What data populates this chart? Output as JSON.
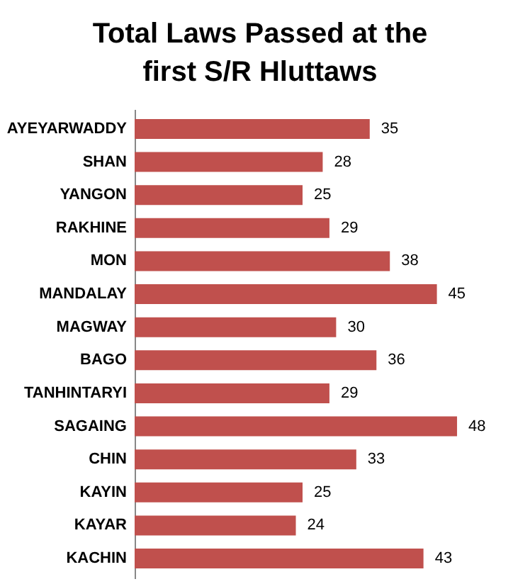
{
  "chart_data": {
    "type": "bar",
    "title": "Total Laws Passed at the first S/R Hluttaws",
    "orientation": "horizontal",
    "categories": [
      "AYEYARWADDY",
      "SHAN",
      "YANGON",
      "RAKHINE",
      "MON",
      "MANDALAY",
      "MAGWAY",
      "BAGO",
      "TANHINTARYI",
      "SAGAING",
      "CHIN",
      "KAYIN",
      "KAYAR",
      "KACHIN"
    ],
    "values": [
      35,
      28,
      25,
      29,
      38,
      45,
      30,
      36,
      29,
      48,
      33,
      25,
      24,
      43
    ],
    "color": "#c0504d",
    "data_labels": true
  }
}
